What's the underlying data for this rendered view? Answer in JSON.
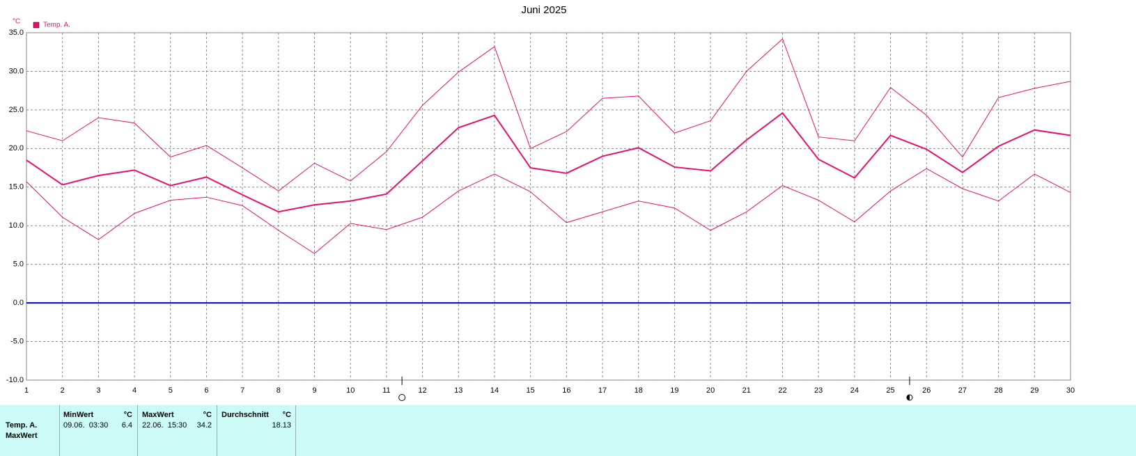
{
  "chart_data": {
    "type": "line",
    "title": "Juni 2025",
    "y_unit": "°C",
    "x": [
      1,
      2,
      3,
      4,
      5,
      6,
      7,
      8,
      9,
      10,
      11,
      12,
      13,
      14,
      15,
      16,
      17,
      18,
      19,
      20,
      21,
      22,
      23,
      24,
      25,
      26,
      27,
      28,
      29,
      30
    ],
    "xlim": [
      1,
      30
    ],
    "xticks": [
      1,
      2,
      3,
      4,
      5,
      6,
      7,
      8,
      9,
      10,
      11,
      12,
      13,
      14,
      15,
      16,
      17,
      18,
      19,
      20,
      21,
      22,
      23,
      24,
      25,
      26,
      27,
      28,
      29,
      30
    ],
    "ylim": [
      -10,
      35
    ],
    "yticks": [
      {
        "value": -10,
        "label": "-10.0"
      },
      {
        "value": -5,
        "label": "-5.0"
      },
      {
        "value": 0,
        "label": "0.0"
      },
      {
        "value": 5,
        "label": "5.0"
      },
      {
        "value": 10,
        "label": "10.0"
      },
      {
        "value": 15,
        "label": "15.0"
      },
      {
        "value": 20,
        "label": "20.0"
      },
      {
        "value": 25,
        "label": "25.0"
      },
      {
        "value": 30,
        "label": "30.0"
      },
      {
        "value": 35,
        "label": "35.0"
      }
    ],
    "grid": true,
    "legend": "top-left",
    "series": [
      {
        "name": "Temp. A.",
        "color": "#e8106c",
        "values": [
          18.5,
          15.3,
          16.5,
          17.2,
          15.2,
          16.3,
          14.0,
          11.8,
          12.7,
          13.2,
          14.1,
          18.4,
          22.7,
          24.3,
          17.5,
          16.8,
          19.0,
          20.1,
          17.6,
          17.1,
          21.1,
          24.6,
          18.6,
          16.2,
          21.7,
          19.9,
          16.9,
          20.3,
          22.4,
          21.7
        ]
      },
      {
        "color": "#e8106c",
        "values": [
          22.3,
          21.0,
          24.0,
          23.3,
          18.9,
          20.4,
          17.5,
          14.5,
          18.1,
          15.8,
          19.6,
          25.6,
          29.9,
          33.2,
          20.0,
          22.2,
          26.5,
          26.8,
          22.0,
          23.6,
          30.0,
          34.2,
          21.5,
          21.0,
          27.9,
          24.3,
          18.9,
          26.6,
          27.8,
          28.7
        ]
      },
      {
        "color": "#e8106c",
        "values": [
          15.7,
          11.1,
          8.2,
          11.6,
          13.3,
          13.7,
          12.6,
          9.4,
          6.4,
          10.3,
          9.5,
          11.1,
          14.5,
          16.7,
          14.4,
          10.4,
          11.8,
          13.2,
          12.3,
          9.4,
          11.8,
          15.2,
          13.3,
          10.5,
          14.5,
          17.4,
          14.8,
          13.2,
          16.7,
          14.3
        ]
      }
    ],
    "reference_line": {
      "value": 0,
      "color": "#0000e0"
    },
    "moon_phases": [
      {
        "x": 11.43,
        "phase": "full"
      },
      {
        "x": 25.53,
        "phase": "new"
      }
    ]
  },
  "table": {
    "header": [
      "MinWert",
      "°C",
      "MaxWert",
      "°C",
      "Durchschnitt",
      "°C"
    ],
    "rows": [
      [
        "Temp. A.",
        "09.06.  03:30",
        6.4,
        "22.06.  15:30",
        34.2,
        18.13
      ],
      [
        "MaxWert"
      ]
    ]
  }
}
